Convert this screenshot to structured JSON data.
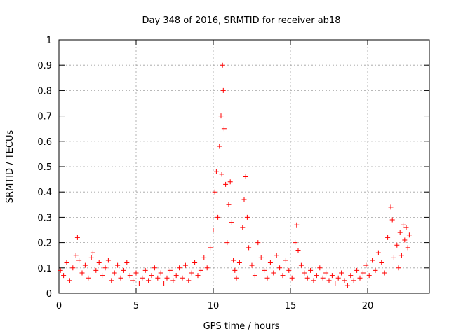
{
  "chart_data": {
    "type": "scatter",
    "title": "Day 348 of 2016, SRMTID for receiver ab18",
    "xlabel": "GPS time / hours",
    "ylabel": "SRMTID / TECUs",
    "xlim": [
      0,
      24
    ],
    "ylim": [
      0,
      1
    ],
    "x_ticks": [
      0,
      5,
      10,
      15,
      20
    ],
    "y_ticks": [
      0,
      0.1,
      0.2,
      0.3,
      0.4,
      0.5,
      0.6,
      0.7,
      0.8,
      0.9,
      1
    ],
    "x_tick_labels": [
      "0",
      "5",
      "10",
      "15",
      "20"
    ],
    "y_tick_labels": [
      "0",
      "0.1",
      "0.2",
      "0.3",
      "0.4",
      "0.5",
      "0.6",
      "0.7",
      "0.8",
      "0.9",
      "1"
    ],
    "grid": true,
    "marker": "+",
    "color": "#ff0000",
    "series": [
      {
        "name": "SRMTID",
        "x": [
          0.1,
          0.3,
          0.5,
          0.7,
          0.9,
          1.1,
          1.2,
          1.3,
          1.5,
          1.7,
          1.9,
          2.1,
          2.2,
          2.4,
          2.6,
          2.8,
          3.0,
          3.2,
          3.4,
          3.6,
          3.8,
          4.0,
          4.2,
          4.4,
          4.6,
          4.8,
          5.0,
          5.2,
          5.4,
          5.6,
          5.8,
          6.0,
          6.2,
          6.4,
          6.6,
          6.8,
          7.0,
          7.2,
          7.4,
          7.6,
          7.8,
          8.0,
          8.2,
          8.4,
          8.6,
          8.8,
          9.0,
          9.2,
          9.4,
          9.6,
          9.8,
          10.0,
          10.1,
          10.2,
          10.3,
          10.4,
          10.5,
          10.55,
          10.6,
          10.65,
          10.7,
          10.8,
          10.9,
          11.0,
          11.1,
          11.2,
          11.3,
          11.4,
          11.5,
          11.7,
          11.9,
          12.0,
          12.1,
          12.2,
          12.3,
          12.5,
          12.7,
          12.9,
          13.1,
          13.3,
          13.5,
          13.7,
          13.9,
          14.1,
          14.3,
          14.5,
          14.7,
          14.9,
          15.1,
          15.3,
          15.4,
          15.5,
          15.7,
          15.9,
          16.1,
          16.3,
          16.5,
          16.7,
          16.9,
          17.1,
          17.3,
          17.5,
          17.7,
          17.9,
          18.1,
          18.3,
          18.5,
          18.7,
          18.9,
          19.1,
          19.3,
          19.5,
          19.7,
          19.9,
          20.1,
          20.3,
          20.5,
          20.7,
          20.9,
          21.1,
          21.3,
          21.5,
          21.6,
          21.7,
          21.9,
          22.0,
          22.1,
          22.2,
          22.3,
          22.4,
          22.5,
          22.6,
          22.7
        ],
        "y": [
          0.09,
          0.07,
          0.12,
          0.05,
          0.1,
          0.15,
          0.22,
          0.13,
          0.08,
          0.11,
          0.06,
          0.14,
          0.16,
          0.09,
          0.12,
          0.07,
          0.1,
          0.13,
          0.05,
          0.08,
          0.11,
          0.06,
          0.09,
          0.12,
          0.07,
          0.05,
          0.08,
          0.04,
          0.06,
          0.09,
          0.05,
          0.07,
          0.1,
          0.06,
          0.08,
          0.04,
          0.06,
          0.09,
          0.05,
          0.07,
          0.1,
          0.06,
          0.11,
          0.05,
          0.08,
          0.12,
          0.07,
          0.09,
          0.14,
          0.1,
          0.18,
          0.25,
          0.4,
          0.48,
          0.3,
          0.58,
          0.7,
          0.47,
          0.9,
          0.8,
          0.65,
          0.43,
          0.2,
          0.35,
          0.44,
          0.28,
          0.13,
          0.09,
          0.06,
          0.12,
          0.26,
          0.37,
          0.46,
          0.3,
          0.18,
          0.11,
          0.07,
          0.2,
          0.14,
          0.09,
          0.06,
          0.12,
          0.08,
          0.15,
          0.1,
          0.07,
          0.13,
          0.09,
          0.06,
          0.2,
          0.27,
          0.17,
          0.11,
          0.08,
          0.06,
          0.09,
          0.05,
          0.07,
          0.1,
          0.06,
          0.08,
          0.05,
          0.07,
          0.04,
          0.06,
          0.08,
          0.05,
          0.03,
          0.07,
          0.05,
          0.09,
          0.06,
          0.08,
          0.11,
          0.07,
          0.13,
          0.09,
          0.16,
          0.12,
          0.08,
          0.22,
          0.34,
          0.29,
          0.14,
          0.19,
          0.1,
          0.24,
          0.15,
          0.27,
          0.21,
          0.26,
          0.18,
          0.23
        ]
      }
    ]
  }
}
